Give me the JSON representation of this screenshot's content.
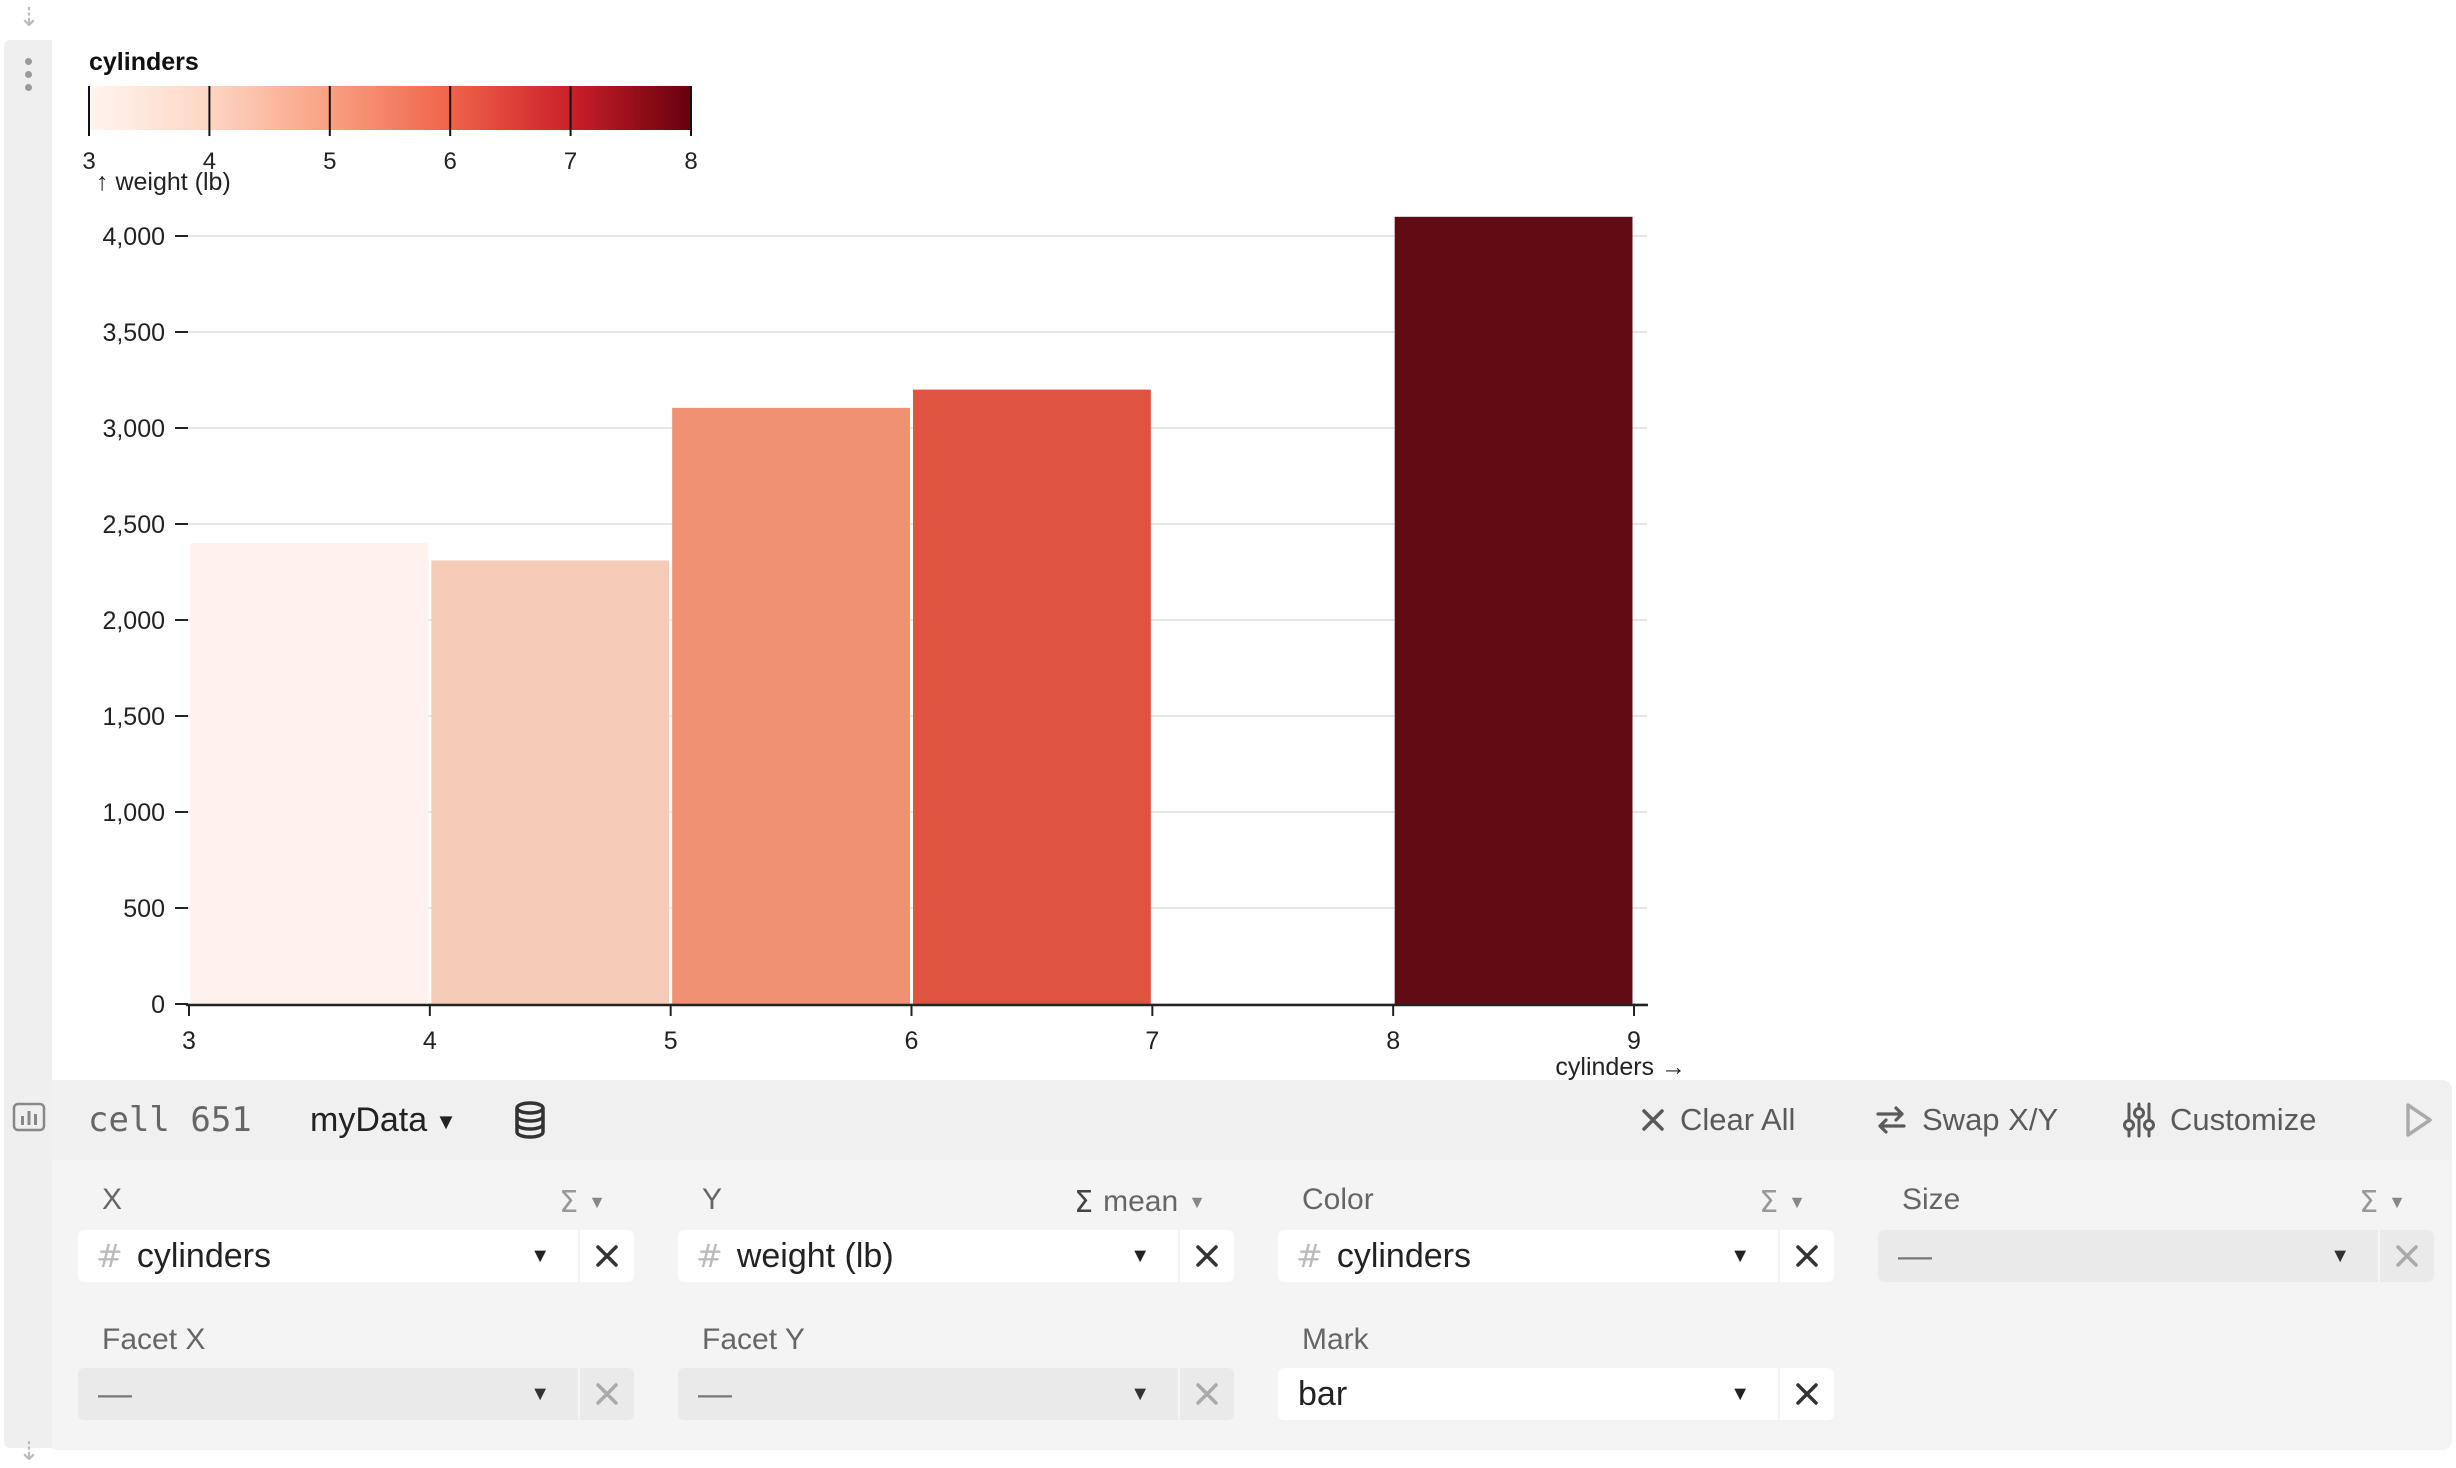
{
  "chart_data": {
    "type": "bar",
    "legend": {
      "title": "cylinders",
      "ticks": [
        "3",
        "4",
        "5",
        "6",
        "7",
        "8"
      ],
      "range": [
        3,
        8
      ],
      "colors": [
        "#fff5f0",
        "#fdd6c3",
        "#f9a081",
        "#f0634a",
        "#cb2028",
        "#67000d"
      ]
    },
    "ylabel": "↑ weight (lb)",
    "xlabel": "cylinders →",
    "ylim": [
      0,
      4000
    ],
    "y_ticks": [
      "0",
      "500",
      "1,000",
      "1,500",
      "2,000",
      "2,500",
      "3,000",
      "3,500",
      "4,000"
    ],
    "xlim": [
      3,
      9
    ],
    "x_ticks": [
      "3",
      "4",
      "5",
      "6",
      "7",
      "8",
      "9"
    ],
    "grid": true,
    "bars": [
      {
        "x0": 3,
        "x1": 4,
        "value": 2400,
        "color": "#fff1ec"
      },
      {
        "x0": 4,
        "x1": 5,
        "value": 2310,
        "color": "#f5cab6"
      },
      {
        "x0": 5,
        "x1": 6,
        "value": 3105,
        "color": "#ee9273"
      },
      {
        "x0": 6,
        "x1": 7,
        "value": 3200,
        "color": "#de5441"
      },
      {
        "x0": 8,
        "x1": 9,
        "value": 4100,
        "color": "#610c14"
      }
    ]
  },
  "toolbar": {
    "cell_label": "cell 651",
    "dataset": "myData",
    "clear_all": "Clear All",
    "swap_xy": "Swap X/Y",
    "customize": "Customize"
  },
  "encodings": {
    "x": {
      "label": "X",
      "field": "cylinders",
      "aggregation": ""
    },
    "y": {
      "label": "Y",
      "field": "weight (lb)",
      "aggregation": "mean"
    },
    "color": {
      "label": "Color",
      "field": "cylinders",
      "aggregation": ""
    },
    "size": {
      "label": "Size",
      "field": "—",
      "aggregation": ""
    },
    "facet_x": {
      "label": "Facet X",
      "field": "—"
    },
    "facet_y": {
      "label": "Facet Y",
      "field": "—"
    },
    "mark": {
      "label": "Mark",
      "field": "bar"
    }
  }
}
